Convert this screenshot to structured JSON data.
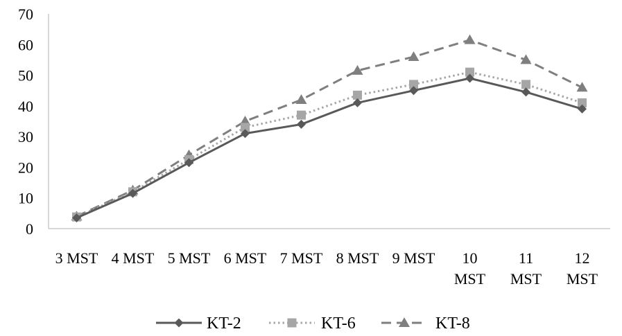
{
  "chart_data": {
    "type": "line",
    "title": "",
    "xlabel": "",
    "ylabel": "",
    "categories": [
      [
        "3 MST"
      ],
      [
        "4 MST"
      ],
      [
        "5 MST"
      ],
      [
        "6 MST"
      ],
      [
        "7 MST"
      ],
      [
        "8 MST"
      ],
      [
        "9 MST"
      ],
      [
        "10",
        "MST"
      ],
      [
        "11",
        "MST"
      ],
      [
        "12",
        "MST"
      ]
    ],
    "ylim": [
      0,
      70
    ],
    "yticks": [
      0,
      10,
      20,
      30,
      40,
      50,
      60,
      70
    ],
    "grid": false,
    "legend_position": "bottom",
    "series": [
      {
        "name": "KT-2",
        "values": [
          3.5,
          11.5,
          21.5,
          31,
          34,
          41,
          45,
          49,
          44.5,
          39
        ],
        "color": "#595959",
        "line_style": "solid",
        "marker": "diamond"
      },
      {
        "name": "KT-6",
        "values": [
          3.8,
          12,
          22.5,
          33,
          37,
          43.5,
          47,
          51,
          47,
          41
        ],
        "color": "#a6a6a6",
        "line_style": "dotted",
        "marker": "square"
      },
      {
        "name": "KT-8",
        "values": [
          4,
          12.5,
          24,
          35,
          42,
          51.5,
          56,
          61.5,
          55,
          46
        ],
        "color": "#7f7f7f",
        "line_style": "dashed",
        "marker": "triangle"
      }
    ]
  }
}
